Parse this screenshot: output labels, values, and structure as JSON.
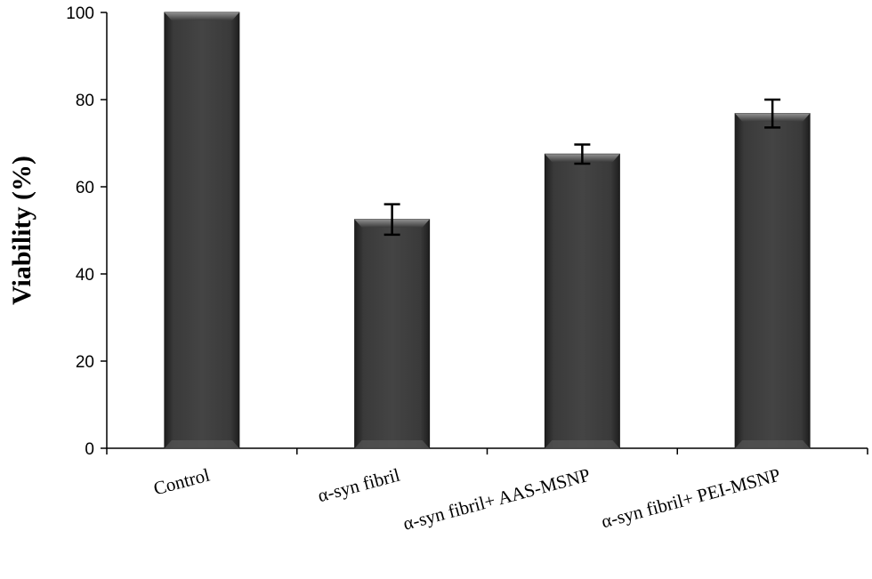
{
  "chart_data": {
    "type": "bar",
    "categories": [
      "Control",
      "α-syn fibril",
      "α-syn fibril+ AAS-MSNP",
      "α-syn fibril+ PEI-MSNP"
    ],
    "series": [
      {
        "values": [
          100,
          52.5,
          67.5,
          76.8
        ],
        "error": [
          0,
          3.5,
          2.2,
          3.2
        ]
      }
    ],
    "ylabel": "Viability (%)",
    "xlabel": "",
    "ylim": [
      0,
      100
    ],
    "yticks": [
      0,
      20,
      40,
      60,
      80,
      100
    ],
    "grid": false,
    "legend": "none",
    "bar_color": "#3b3b3b"
  }
}
